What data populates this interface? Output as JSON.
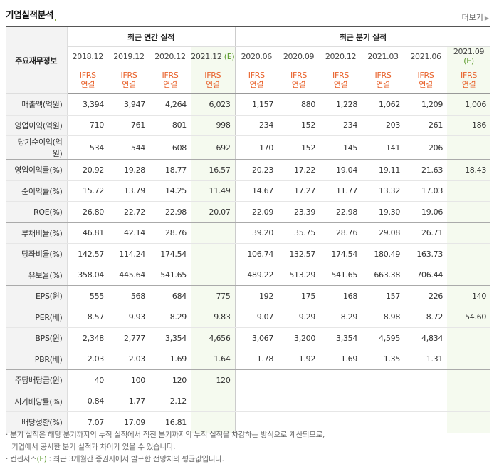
{
  "section": {
    "title": "기업실적분석",
    "more_label": "더보기"
  },
  "header": {
    "corner_label": "주요재무정보",
    "annual_label": "최근 연간 실적",
    "quarterly_label": "최근 분기 실적",
    "periods": [
      {
        "label": "2018.12",
        "estimate": false
      },
      {
        "label": "2019.12",
        "estimate": false
      },
      {
        "label": "2020.12",
        "estimate": false
      },
      {
        "label": "2021.12",
        "estimate": true,
        "suffix": "(E)"
      },
      {
        "label": "2020.06",
        "estimate": false
      },
      {
        "label": "2020.09",
        "estimate": false
      },
      {
        "label": "2020.12",
        "estimate": false
      },
      {
        "label": "2021.03",
        "estimate": false
      },
      {
        "label": "2021.06",
        "estimate": false
      },
      {
        "label": "2021.09",
        "estimate": true,
        "suffix": "(E)"
      }
    ],
    "ifrs_line1": "IFRS",
    "ifrs_line2": "연결"
  },
  "rows": [
    {
      "label": "매출액(억원)",
      "values": [
        "3,394",
        "3,947",
        "4,264",
        "6,023",
        "1,157",
        "880",
        "1,228",
        "1,062",
        "1,209",
        "1,006"
      ]
    },
    {
      "label": "영업이익(억원)",
      "values": [
        "710",
        "761",
        "801",
        "998",
        "234",
        "152",
        "234",
        "203",
        "261",
        "186"
      ]
    },
    {
      "label": "당기순이익(억원)",
      "values": [
        "534",
        "544",
        "608",
        "692",
        "170",
        "152",
        "145",
        "141",
        "206",
        ""
      ]
    },
    {
      "label": "영업이익률(%)",
      "values": [
        "20.92",
        "19.28",
        "18.77",
        "16.57",
        "20.23",
        "17.22",
        "19.04",
        "19.11",
        "21.63",
        "18.43"
      ]
    },
    {
      "label": "순이익률(%)",
      "values": [
        "15.72",
        "13.79",
        "14.25",
        "11.49",
        "14.67",
        "17.27",
        "11.77",
        "13.32",
        "17.03",
        ""
      ]
    },
    {
      "label": "ROE(%)",
      "values": [
        "26.80",
        "22.72",
        "22.98",
        "20.07",
        "22.09",
        "23.39",
        "22.98",
        "19.30",
        "19.06",
        ""
      ]
    },
    {
      "label": "부채비율(%)",
      "values": [
        "46.81",
        "42.14",
        "28.76",
        "",
        "39.20",
        "35.75",
        "28.76",
        "29.08",
        "26.71",
        ""
      ]
    },
    {
      "label": "당좌비율(%)",
      "values": [
        "142.57",
        "114.24",
        "174.54",
        "",
        "106.74",
        "132.57",
        "174.54",
        "180.49",
        "163.73",
        ""
      ]
    },
    {
      "label": "유보율(%)",
      "values": [
        "358.04",
        "445.64",
        "541.65",
        "",
        "489.22",
        "513.29",
        "541.65",
        "663.38",
        "706.44",
        ""
      ]
    },
    {
      "label": "EPS(원)",
      "values": [
        "555",
        "568",
        "684",
        "775",
        "192",
        "175",
        "168",
        "157",
        "226",
        "140"
      ]
    },
    {
      "label": "PER(배)",
      "values": [
        "8.57",
        "9.93",
        "8.29",
        "9.83",
        "9.07",
        "9.29",
        "8.29",
        "8.98",
        "8.72",
        "54.60"
      ]
    },
    {
      "label": "BPS(원)",
      "values": [
        "2,348",
        "2,777",
        "3,354",
        "4,656",
        "3,067",
        "3,200",
        "3,354",
        "4,595",
        "4,834",
        ""
      ]
    },
    {
      "label": "PBR(배)",
      "values": [
        "2.03",
        "2.03",
        "1.69",
        "1.64",
        "1.78",
        "1.92",
        "1.69",
        "1.35",
        "1.31",
        ""
      ]
    },
    {
      "label": "주당배당금(원)",
      "values": [
        "40",
        "100",
        "120",
        "120",
        "",
        "",
        "",
        "",
        "",
        ""
      ]
    },
    {
      "label": "시가배당률(%)",
      "values": [
        "0.84",
        "1.77",
        "2.12",
        "",
        "",
        "",
        "",
        "",
        "",
        ""
      ]
    },
    {
      "label": "배당성향(%)",
      "values": [
        "7.07",
        "17.09",
        "16.81",
        "",
        "",
        "",
        "",
        "",
        "",
        ""
      ]
    }
  ],
  "notes": {
    "line1": "분기 실적은 해당 분기까지의 누적 실적에서 직전 분기까지의 누적 실적을 차감하는 방식으로 계산되므로,",
    "line2": "기업에서 공시한 분기 실적과 차이가 있을 수 있습니다.",
    "line3_prefix": "컨센서스",
    "line3_mark": "(E)",
    "line3_suffix": ": 최근 3개월간 증권사에서 발표한 전망치의 평균값입니다."
  },
  "colors": {
    "ifrs": "#e8612a",
    "estimate_bg": "#f5faef",
    "estimate_mark": "#5a9a2a"
  }
}
